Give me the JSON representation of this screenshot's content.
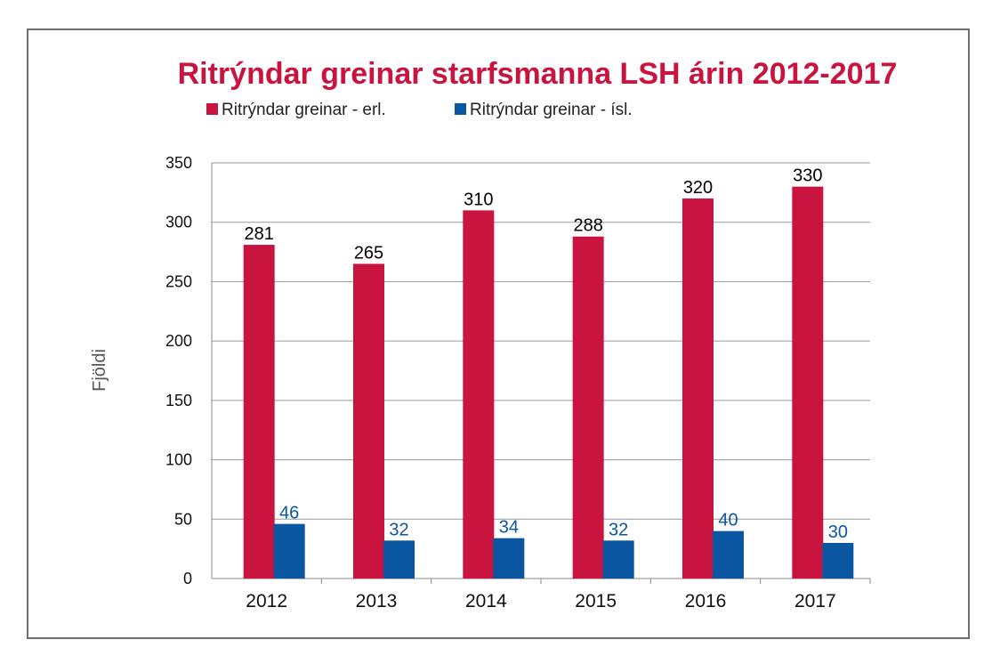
{
  "chart_data": {
    "type": "bar",
    "title": "Ritrýndar greinar starfsmanna LSH árin 2012-2017",
    "xlabel": "",
    "ylabel": "Fjöldi",
    "categories": [
      "2012",
      "2013",
      "2014",
      "2015",
      "2016",
      "2017"
    ],
    "series": [
      {
        "name": "Ritrýndar greinar - erl.",
        "color": "#c8143f",
        "label_color": "#000000",
        "values": [
          281,
          265,
          310,
          288,
          320,
          330
        ]
      },
      {
        "name": "Ritrýndar greinar - ísl.",
        "color": "#0a56a0",
        "label_color": "#0a56a0",
        "values": [
          46,
          32,
          34,
          32,
          40,
          30
        ]
      }
    ],
    "ylim": [
      0,
      350
    ],
    "yticks": [
      0,
      50,
      100,
      150,
      200,
      250,
      300,
      350
    ],
    "grid": true,
    "legend_position": "top-left",
    "title_color": "#c8143f"
  }
}
